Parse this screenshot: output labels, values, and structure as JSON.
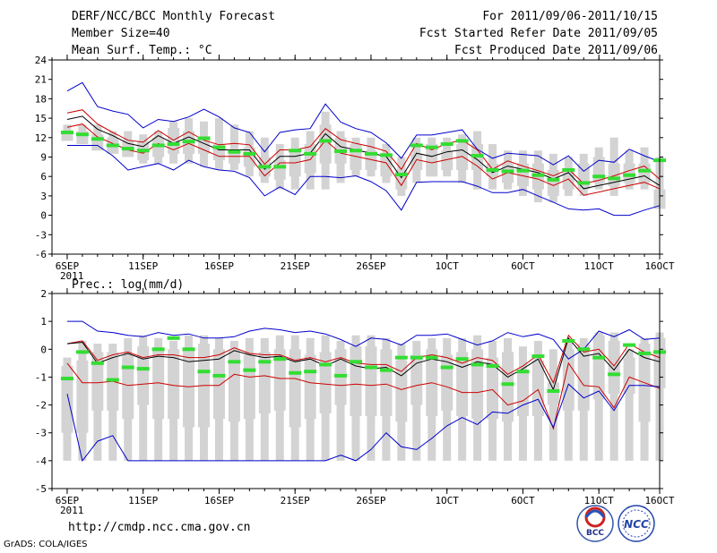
{
  "header": {
    "title": "DERF/NCC/BCC Monthly Forecast",
    "member_size": "Member Size=40",
    "variable": "Mean Surf. Temp.: °C",
    "forecast_period": "For 2011/09/06-2011/10/15",
    "started_date": "Fcst Started Refer Date 2011/09/05",
    "produced_date": "Fcst Produced Date 2011/09/06"
  },
  "footer": {
    "url": "http://cmdp.ncc.cma.gov.cn",
    "credit": "GrADS: COLA/IGES",
    "logos": [
      {
        "name": "bcc-logo",
        "text": "BCC"
      },
      {
        "name": "ncc-logo",
        "text": "NCC"
      }
    ]
  },
  "colors": {
    "max_min": "#0000cc",
    "band": "#cc0000",
    "mean": "#000000",
    "marker": "#33dd33",
    "bar": "#d3d3d3"
  },
  "chart_data": [
    {
      "type": "box",
      "name": "temperature",
      "ylabel": "Mean Surf. Temp.: °C",
      "ylim": [
        -6,
        24
      ],
      "yticks": [
        -6,
        -3,
        0,
        3,
        6,
        9,
        12,
        15,
        18,
        21,
        24
      ],
      "xlim": [
        0,
        40
      ],
      "xticks": [
        {
          "x": 1,
          "label": "6SEP",
          "sub": "2011"
        },
        {
          "x": 6,
          "label": "11SEP"
        },
        {
          "x": 11,
          "label": "16SEP"
        },
        {
          "x": 16,
          "label": "21SEP"
        },
        {
          "x": 21,
          "label": "26SEP"
        },
        {
          "x": 26,
          "label": "1OCT"
        },
        {
          "x": 31,
          "label": "6OCT"
        },
        {
          "x": 36,
          "label": "11OCT"
        },
        {
          "x": 41,
          "label": "16OCT"
        }
      ],
      "days": 40,
      "bar_low": [
        11.5,
        11.5,
        10.5,
        10,
        9,
        8,
        8,
        8,
        8,
        7.5,
        7,
        7,
        6,
        5,
        4,
        4,
        4,
        4,
        5,
        6,
        6,
        5,
        3,
        5,
        6,
        6,
        5,
        4,
        4,
        4,
        3,
        2,
        2,
        3,
        3,
        4,
        3,
        4,
        4,
        2
      ],
      "bar_high": [
        14,
        14,
        14,
        13,
        13,
        12.5,
        13,
        14.5,
        15,
        14.5,
        15,
        14,
        13,
        12,
        11,
        12,
        13,
        16,
        13,
        12,
        12,
        11,
        9,
        12,
        12,
        12,
        12.5,
        13,
        11,
        10,
        10,
        10,
        9.5,
        9,
        9.5,
        10.5,
        12,
        10,
        10.5,
        9
      ],
      "box_low": [
        11.5,
        11,
        10,
        9.5,
        9,
        8.5,
        9,
        9.5,
        9.5,
        9.5,
        8.5,
        8,
        7.5,
        6,
        5.5,
        6,
        6.5,
        8,
        8,
        7,
        7,
        6,
        4,
        7,
        6,
        7,
        7,
        7,
        6,
        5,
        4.5,
        4,
        3,
        4,
        4,
        5,
        4.5,
        5,
        5,
        1
      ],
      "box_high": [
        13,
        13,
        12.5,
        12,
        11.5,
        11.5,
        12,
        13.5,
        13,
        12,
        11,
        10,
        10.5,
        9,
        8.5,
        10,
        11,
        14,
        12,
        11,
        10,
        9,
        7,
        9.5,
        11,
        10,
        11,
        11,
        8,
        8,
        8,
        8,
        7,
        7,
        8,
        9,
        8,
        8,
        8,
        4
      ],
      "marker": [
        12.8,
        12.5,
        11.8,
        10.8,
        10.3,
        10,
        10.8,
        11,
        11.4,
        11.9,
        10.5,
        9.8,
        9.5,
        7.5,
        7.5,
        10,
        9.5,
        11.5,
        9.9,
        10,
        9.5,
        9.3,
        6.3,
        10.8,
        10.5,
        11,
        11.5,
        9.2,
        7,
        6.8,
        6.9,
        6.2,
        5.5,
        7,
        5,
        6,
        5.7,
        6.2,
        6.9,
        8.5
      ],
      "series": [
        {
          "name": "max",
          "values": [
            19.2,
            20.5,
            16.8,
            16.1,
            15.6,
            13.5,
            14.8,
            14.5,
            15.2,
            16.4,
            15.2,
            13.5,
            12.8,
            9.8,
            12.8,
            13.2,
            13.4,
            17.2,
            14.4,
            13.4,
            12.8,
            11.2,
            8.8,
            12.4,
            12.4,
            12.8,
            13.2,
            10.2,
            8.8,
            9.6,
            9.4,
            9.2,
            7.8,
            9.2,
            6.8,
            8.5,
            8.2,
            10.2,
            9.2,
            8.3
          ]
        },
        {
          "name": "upper",
          "values": [
            15.8,
            16.3,
            14.1,
            12.8,
            11.6,
            11.3,
            13.1,
            11.6,
            12.9,
            11.6,
            10.9,
            11.1,
            10.9,
            7.9,
            10.1,
            10.1,
            10.6,
            13.4,
            11.7,
            11.1,
            10.6,
            9.9,
            7.1,
            11.1,
            10.1,
            11.1,
            11.6,
            10.1,
            7.1,
            8.4,
            7.6,
            6.9,
            6.1,
            7.1,
            4.9,
            5.4,
            6.1,
            6.9,
            7.6,
            5.6
          ]
        },
        {
          "name": "mean",
          "values": [
            14.8,
            15.3,
            13.3,
            12.3,
            11.1,
            10.6,
            12.3,
            11.1,
            12.1,
            11.1,
            10.1,
            10.1,
            10.1,
            7.1,
            9.1,
            9.1,
            9.6,
            12.6,
            10.6,
            10.1,
            9.6,
            9.1,
            5.8,
            9.6,
            9.1,
            9.8,
            10.1,
            8.6,
            6.6,
            7.6,
            7.1,
            6.6,
            5.6,
            6.6,
            4.1,
            4.6,
            5.1,
            5.6,
            6.1,
            4.6
          ]
        },
        {
          "name": "lower",
          "values": [
            13.6,
            14.1,
            12.1,
            11.1,
            10.1,
            9.6,
            11.1,
            10.1,
            11.1,
            10.1,
            9.1,
            9.1,
            9.1,
            6.1,
            8.1,
            8.1,
            8.6,
            11.6,
            9.6,
            9.1,
            8.6,
            8.1,
            4.6,
            8.6,
            8.1,
            8.6,
            9.1,
            7.6,
            5.6,
            6.6,
            6.1,
            5.6,
            4.6,
            5.6,
            3.1,
            3.6,
            4.1,
            4.6,
            5.1,
            4.1
          ]
        },
        {
          "name": "min",
          "values": [
            10.8,
            10.8,
            10.8,
            9.2,
            7.0,
            7.5,
            8.0,
            7.0,
            8.5,
            7.5,
            7.0,
            6.8,
            5.8,
            3.0,
            4.4,
            3.2,
            6.0,
            6.0,
            5.8,
            6.1,
            5.2,
            3.8,
            0.8,
            5.1,
            5.2,
            5.2,
            5.2,
            4.5,
            3.5,
            3.5,
            4.0,
            3.0,
            2.0,
            1.0,
            0.8,
            1.0,
            0.0,
            0.0,
            0.8,
            1.5
          ]
        }
      ]
    },
    {
      "type": "box",
      "name": "precipitation",
      "ylabel": "Prec.: log(mm/d)",
      "ylim": [
        -5,
        2
      ],
      "yticks": [
        -5,
        -4,
        -3,
        -2,
        -1,
        0,
        1,
        2
      ],
      "xlim": [
        0,
        40
      ],
      "xticks": [
        {
          "x": 1,
          "label": "6SEP",
          "sub": "2011"
        },
        {
          "x": 6,
          "label": "11SEP"
        },
        {
          "x": 11,
          "label": "16SEP"
        },
        {
          "x": 16,
          "label": "21SEP"
        },
        {
          "x": 21,
          "label": "26SEP"
        },
        {
          "x": 26,
          "label": "1OCT"
        },
        {
          "x": 31,
          "label": "6OCT"
        },
        {
          "x": 36,
          "label": "11OCT"
        },
        {
          "x": 41,
          "label": "16OCT"
        }
      ],
      "days": 40,
      "bar_low": [
        -4,
        -4,
        -4,
        -4,
        -4,
        -4,
        -4,
        -4,
        -4,
        -4,
        -4,
        -4,
        -4,
        -4,
        -4,
        -4,
        -4,
        -4,
        -4,
        -4,
        -4,
        -4,
        -4,
        -4,
        -4,
        -4,
        -4,
        -4,
        -4,
        -4,
        -4,
        -4,
        -4,
        -4,
        -4,
        -4,
        -4,
        -4,
        -4,
        -4
      ],
      "bar_high": [
        -0.3,
        0.3,
        0.2,
        0.2,
        0.4,
        0.5,
        0.4,
        0.3,
        0.5,
        0.5,
        0.4,
        0.3,
        0.4,
        0.4,
        0.5,
        0.5,
        0.4,
        0.5,
        0.3,
        0.5,
        0.5,
        0.4,
        0.2,
        0.3,
        0.4,
        0.4,
        0.4,
        0.5,
        0.3,
        0.4,
        0.1,
        0.3,
        0.0,
        0.3,
        0.4,
        0.6,
        0.6,
        0.0,
        0.4,
        0.6
      ],
      "box_low": [
        -3.0,
        -3.0,
        -2.2,
        -2.2,
        -2.5,
        -2.0,
        -2.5,
        -2.5,
        -2.8,
        -2.8,
        -2.5,
        -2.6,
        -2.5,
        -2.3,
        -2.2,
        -2.8,
        -2.5,
        -2.3,
        -2.0,
        -2.4,
        -2.4,
        -2.4,
        -2.6,
        -2.0,
        -2.4,
        -2.2,
        -2.4,
        -2.5,
        -2.5,
        -2.6,
        -2.4,
        -2.4,
        -2.0,
        -2.2,
        -2.2,
        -1.8,
        -1.6,
        -1.6,
        -2.6,
        -1.4
      ],
      "box_high": [
        -0.6,
        -0.4,
        -0.1,
        -0.1,
        -0.2,
        0.1,
        0.0,
        0.0,
        0.0,
        0.2,
        0.0,
        0.0,
        -0.2,
        -0.1,
        0.0,
        0.0,
        -0.2,
        -0.1,
        0.0,
        0.1,
        0.1,
        0.0,
        -0.4,
        -0.2,
        0.0,
        -0.2,
        -0.1,
        0.0,
        -0.3,
        -0.1,
        -0.8,
        -0.4,
        -1.2,
        0.0,
        0.2,
        0.5,
        0.3,
        -0.3,
        0.2,
        0.4
      ],
      "marker": [
        -1.05,
        -0.1,
        -0.5,
        -1.1,
        -0.65,
        -0.7,
        0.0,
        0.4,
        0.0,
        -0.8,
        -0.95,
        -0.45,
        -0.75,
        -0.45,
        -0.35,
        -0.85,
        -0.8,
        -0.55,
        -0.95,
        -0.45,
        -0.65,
        -0.75,
        -0.3,
        -0.3,
        -0.3,
        -0.65,
        -0.35,
        -0.55,
        -0.6,
        -1.25,
        -0.8,
        -0.25,
        -1.5,
        0.3,
        0.0,
        -0.3,
        -0.9,
        0.15,
        -0.15,
        -0.1
      ],
      "series": [
        {
          "name": "max",
          "values": [
            1.0,
            1.0,
            0.65,
            0.6,
            0.5,
            0.45,
            0.6,
            0.5,
            0.55,
            0.4,
            0.4,
            0.45,
            0.65,
            0.75,
            0.7,
            0.6,
            0.65,
            0.55,
            0.35,
            0.1,
            0.4,
            0.35,
            0.15,
            0.5,
            0.5,
            0.55,
            0.35,
            0.15,
            0.3,
            0.6,
            0.45,
            0.55,
            0.35,
            -0.35,
            0.0,
            0.65,
            0.45,
            0.7,
            0.35,
            0.4
          ]
        },
        {
          "name": "upper",
          "values": [
            0.2,
            0.3,
            -0.4,
            -0.2,
            -0.1,
            -0.3,
            -0.2,
            -0.2,
            -0.3,
            -0.3,
            -0.2,
            0.05,
            -0.15,
            -0.2,
            -0.2,
            -0.4,
            -0.3,
            -0.45,
            -0.3,
            -0.5,
            -0.55,
            -0.55,
            -0.8,
            -0.3,
            -0.2,
            -0.3,
            -0.5,
            -0.3,
            -0.4,
            -0.9,
            -0.6,
            -0.2,
            -1.2,
            0.5,
            -0.1,
            0.0,
            -0.6,
            0.2,
            -0.1,
            -0.3
          ]
        },
        {
          "name": "mean",
          "values": [
            0.2,
            0.25,
            -0.5,
            -0.3,
            -0.15,
            -0.35,
            -0.25,
            -0.3,
            -0.45,
            -0.4,
            -0.35,
            -0.05,
            -0.2,
            -0.3,
            -0.25,
            -0.45,
            -0.35,
            -0.6,
            -0.35,
            -0.6,
            -0.7,
            -0.65,
            -0.95,
            -0.5,
            -0.35,
            -0.45,
            -0.65,
            -0.45,
            -0.55,
            -1.0,
            -0.7,
            -0.35,
            -1.45,
            0.4,
            -0.25,
            -0.15,
            -0.75,
            0.0,
            -0.3,
            -0.45
          ]
        },
        {
          "name": "lower",
          "values": [
            -0.5,
            -1.2,
            -1.2,
            -1.15,
            -1.3,
            -1.25,
            -1.2,
            -1.3,
            -1.35,
            -1.3,
            -1.3,
            -0.9,
            -1.0,
            -0.95,
            -1.05,
            -1.05,
            -1.2,
            -1.25,
            -1.3,
            -1.25,
            -1.3,
            -1.25,
            -1.45,
            -1.3,
            -1.2,
            -1.35,
            -1.55,
            -1.55,
            -1.45,
            -2.0,
            -1.85,
            -1.45,
            -2.85,
            -0.5,
            -1.3,
            -1.35,
            -2.1,
            -1.0,
            -1.2,
            -1.4
          ]
        },
        {
          "name": "min",
          "values": [
            -1.6,
            -4.0,
            -3.3,
            -3.1,
            -4.0,
            -4.0,
            -4.0,
            -4.0,
            -4.0,
            -4.0,
            -4.0,
            -4.0,
            -4.0,
            -4.0,
            -4.0,
            -4.0,
            -4.0,
            -4.0,
            -3.8,
            -4.0,
            -3.6,
            -3.0,
            -3.5,
            -3.6,
            -3.2,
            -2.75,
            -2.45,
            -2.7,
            -2.25,
            -2.3,
            -2.0,
            -1.8,
            -2.8,
            -1.25,
            -1.75,
            -1.5,
            -2.2,
            -1.3,
            -1.3,
            -1.35
          ]
        }
      ]
    }
  ]
}
